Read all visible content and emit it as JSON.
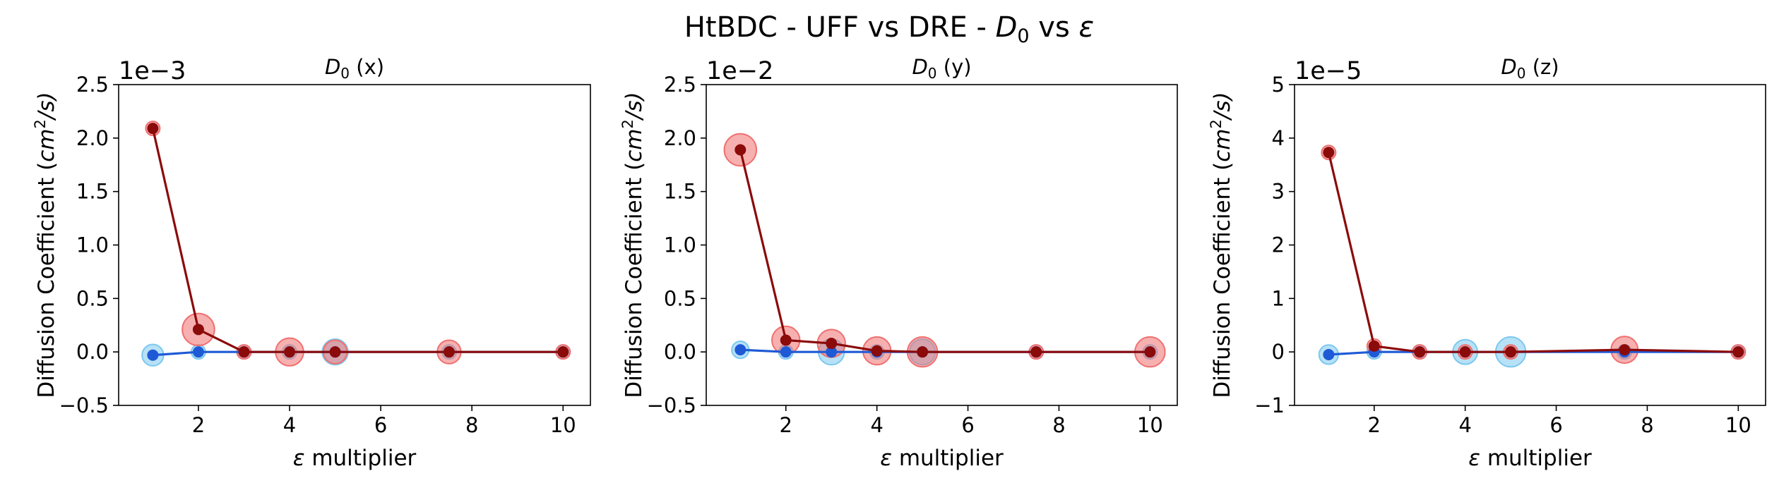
{
  "figure": {
    "suptitle": "HtBDC - UFF vs DRE - D₀ vs ε",
    "suptitle_parts": {
      "pre": "HtBDC - UFF vs DRE - ",
      "var": "D",
      "sub": "0",
      "post": " vs ",
      "eps": "ε"
    }
  },
  "colors": {
    "blue_line": "#1f5ad6",
    "blue_halo": "#7cc8f0",
    "red_line": "#8b0a0a",
    "red_halo": "#f07070"
  },
  "chart_data": [
    {
      "type": "scatter",
      "title": "D₀ (x)",
      "title_parts": {
        "var": "D",
        "sub": "0",
        "rest": " (x)"
      },
      "xlabel": "ε multiplier",
      "ylabel": "Diffusion Coefficient (cm²/s)",
      "ylabel_parts": {
        "pre": "Diffusion Coefficient (",
        "unit": "cm",
        "sup": "2",
        "post": "/s)"
      },
      "offset_text": "1e−3",
      "xlim": [
        0.25,
        10.6
      ],
      "ylim": [
        -0.5,
        2.5
      ],
      "xticks": [
        2,
        4,
        6,
        8,
        10
      ],
      "xtick_labels": [
        "2",
        "4",
        "6",
        "8",
        "10"
      ],
      "yticks": [
        -0.5,
        0.0,
        0.5,
        1.0,
        1.5,
        2.0,
        2.5
      ],
      "ytick_labels": [
        "−0.5",
        "0.0",
        "0.5",
        "1.0",
        "1.5",
        "2.0",
        "2.5"
      ],
      "series": [
        {
          "x": [
            1,
            2,
            3,
            4,
            5,
            7.5,
            10
          ],
          "y": [
            -0.03,
            0.0,
            0.0,
            0.0,
            0.0,
            0.0,
            0.0
          ],
          "error": [
            0.1,
            0.03,
            0.02,
            0.04,
            0.12,
            0.03,
            0.05
          ],
          "color": "blue"
        },
        {
          "x": [
            1,
            2,
            3,
            4,
            5,
            7.5,
            10
          ],
          "y": [
            2.09,
            0.21,
            0.0,
            0.0,
            0.0,
            0.0,
            0.0
          ],
          "error": [
            0.05,
            0.15,
            0.03,
            0.13,
            0.11,
            0.11,
            0.03
          ],
          "color": "red"
        }
      ]
    },
    {
      "type": "scatter",
      "title": "D₀ (y)",
      "title_parts": {
        "var": "D",
        "sub": "0",
        "rest": " (y)"
      },
      "xlabel": "ε multiplier",
      "ylabel": "Diffusion Coefficient (cm²/s)",
      "ylabel_parts": {
        "pre": "Diffusion Coefficient (",
        "unit": "cm",
        "sup": "2",
        "post": "/s)"
      },
      "offset_text": "1e−2",
      "xlim": [
        0.25,
        10.6
      ],
      "ylim": [
        -0.5,
        2.5
      ],
      "xticks": [
        2,
        4,
        6,
        8,
        10
      ],
      "xtick_labels": [
        "2",
        "4",
        "6",
        "8",
        "10"
      ],
      "yticks": [
        -0.5,
        0.0,
        0.5,
        1.0,
        1.5,
        2.0,
        2.5
      ],
      "ytick_labels": [
        "−0.5",
        "0.0",
        "0.5",
        "1.0",
        "1.5",
        "2.0",
        "2.5"
      ],
      "series": [
        {
          "x": [
            1,
            2,
            3,
            4,
            5,
            7.5,
            10
          ],
          "y": [
            0.02,
            0.0,
            0.0,
            0.0,
            0.0,
            0.0,
            0.0
          ],
          "error": [
            0.08,
            0.03,
            0.12,
            0.05,
            0.12,
            0.04,
            0.03
          ],
          "color": "blue"
        },
        {
          "x": [
            1,
            2,
            3,
            4,
            5,
            7.5,
            10
          ],
          "y": [
            1.89,
            0.11,
            0.08,
            0.01,
            0.0,
            0.0,
            0.0
          ],
          "error": [
            0.15,
            0.13,
            0.13,
            0.13,
            0.14,
            0.05,
            0.14
          ],
          "color": "red"
        }
      ]
    },
    {
      "type": "scatter",
      "title": "D₀ (z)",
      "title_parts": {
        "var": "D",
        "sub": "0",
        "rest": " (z)"
      },
      "xlabel": "ε multiplier",
      "ylabel": "Diffusion Coefficient (cm²/s)",
      "ylabel_parts": {
        "pre": "Diffusion Coefficient (",
        "unit": "cm",
        "sup": "2",
        "post": "/s)"
      },
      "offset_text": "1e−5",
      "xlim": [
        0.25,
        10.6
      ],
      "ylim": [
        -1,
        5
      ],
      "xticks": [
        2,
        4,
        6,
        8,
        10
      ],
      "xtick_labels": [
        "2",
        "4",
        "6",
        "8",
        "10"
      ],
      "yticks": [
        -1,
        0,
        1,
        2,
        3,
        4,
        5
      ],
      "ytick_labels": [
        "−1",
        "0",
        "1",
        "2",
        "3",
        "4",
        "5"
      ],
      "series": [
        {
          "x": [
            1,
            2,
            3,
            4,
            5,
            7.5,
            10
          ],
          "y": [
            -0.05,
            0.0,
            0.0,
            0.0,
            0.0,
            0.0,
            0.0
          ],
          "error": [
            0.18,
            0.08,
            0.05,
            0.23,
            0.28,
            0.09,
            0.06
          ],
          "color": "blue"
        },
        {
          "x": [
            1,
            2,
            3,
            4,
            5,
            7.5,
            10
          ],
          "y": [
            3.73,
            0.11,
            0.0,
            0.0,
            0.0,
            0.04,
            0.0
          ],
          "error": [
            0.12,
            0.07,
            0.06,
            0.08,
            0.09,
            0.25,
            0.07
          ],
          "color": "red"
        }
      ]
    }
  ]
}
